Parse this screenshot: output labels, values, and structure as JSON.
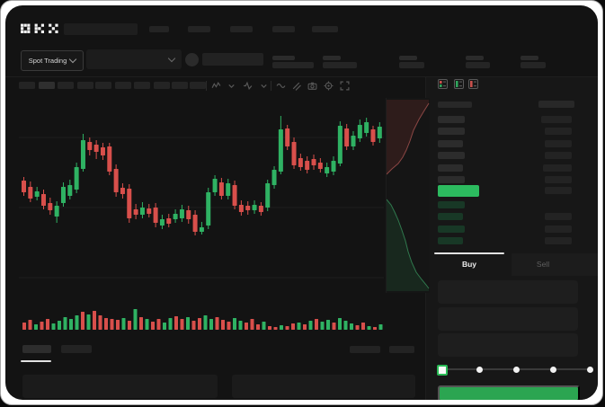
{
  "brand": "OKX",
  "market_bar": {
    "selector_label": "Spot Trading"
  },
  "colors": {
    "up": "#2fb263",
    "down": "#d84f4b",
    "accent_green": "#2cbb5f",
    "button_green": "#2ba551",
    "bid_row_green": "#183826",
    "depth_ask_fill": "rgba(200,70,66,0.14)",
    "depth_ask_line": "rgba(225,110,105,0.55)",
    "depth_bid_fill": "rgba(48,170,95,0.13)",
    "depth_bid_line": "rgba(70,195,120,0.55)"
  },
  "toolbar": {
    "timeframe_placeholder_count": 10,
    "active_timeframe_index": 1
  },
  "order_book": {
    "view_icons": [
      "orderbook-combined",
      "orderbook-buy",
      "orderbook-sell"
    ],
    "asks": [
      {
        "pw": 30,
        "aw": 34
      },
      {
        "pw": 30,
        "aw": 30
      },
      {
        "pw": 28,
        "aw": 30
      },
      {
        "pw": 30,
        "aw": 30
      },
      {
        "pw": 28,
        "aw": 32
      },
      {
        "pw": 30,
        "aw": 30
      }
    ],
    "last_price": {
      "side": "up",
      "aw": 30
    },
    "bids": [
      {
        "pw": 30,
        "aw": 0
      },
      {
        "pw": 28,
        "aw": 30
      },
      {
        "pw": 30,
        "aw": 30
      },
      {
        "pw": 28,
        "aw": 30
      }
    ]
  },
  "trade_panel": {
    "tabs": [
      {
        "label": "Buy",
        "active": true
      },
      {
        "label": "Sell",
        "active": false
      }
    ],
    "field_count": 3,
    "slider": {
      "stops": 5,
      "active_index": 0
    },
    "submit_label": ""
  },
  "chart_data": {
    "type": "candlestick+volume+depth",
    "title": "",
    "xlabel": "",
    "ylabel": "",
    "axis_labels_visible": false,
    "grid": true,
    "price_unit_note": "no axis labels visible; values estimated in relative units",
    "candles": [
      [
        140,
        144,
        123,
        127
      ],
      [
        133,
        139,
        116,
        120
      ],
      [
        122,
        133,
        118,
        128
      ],
      [
        125,
        130,
        108,
        112
      ],
      [
        115,
        121,
        102,
        107
      ],
      [
        100,
        117,
        93,
        112
      ],
      [
        115,
        138,
        111,
        133
      ],
      [
        123,
        141,
        119,
        135
      ],
      [
        130,
        160,
        126,
        155
      ],
      [
        153,
        192,
        150,
        185
      ],
      [
        183,
        188,
        168,
        174
      ],
      [
        180,
        185,
        164,
        172
      ],
      [
        177,
        182,
        163,
        168
      ],
      [
        178,
        182,
        146,
        150
      ],
      [
        153,
        158,
        122,
        127
      ],
      [
        132,
        137,
        120,
        125
      ],
      [
        131,
        136,
        93,
        98
      ],
      [
        108,
        114,
        97,
        102
      ],
      [
        102,
        116,
        98,
        110
      ],
      [
        109,
        114,
        99,
        103
      ],
      [
        110,
        115,
        88,
        93
      ],
      [
        90,
        102,
        86,
        97
      ],
      [
        98,
        103,
        88,
        92
      ],
      [
        97,
        108,
        93,
        103
      ],
      [
        98,
        113,
        94,
        108
      ],
      [
        107,
        112,
        92,
        97
      ],
      [
        102,
        107,
        79,
        83
      ],
      [
        83,
        94,
        80,
        88
      ],
      [
        90,
        132,
        86,
        127
      ],
      [
        127,
        146,
        123,
        142
      ],
      [
        138,
        143,
        119,
        123
      ],
      [
        123,
        142,
        119,
        137
      ],
      [
        135,
        140,
        108,
        112
      ],
      [
        113,
        118,
        101,
        105
      ],
      [
        112,
        117,
        102,
        107
      ],
      [
        107,
        118,
        103,
        113
      ],
      [
        112,
        116,
        101,
        105
      ],
      [
        110,
        141,
        106,
        137
      ],
      [
        135,
        156,
        131,
        152
      ],
      [
        150,
        212,
        147,
        197
      ],
      [
        198,
        202,
        174,
        178
      ],
      [
        183,
        188,
        153,
        157
      ],
      [
        165,
        170,
        151,
        155
      ],
      [
        162,
        167,
        148,
        152
      ],
      [
        164,
        169,
        152,
        157
      ],
      [
        160,
        165,
        149,
        153
      ],
      [
        148,
        160,
        144,
        155
      ],
      [
        150,
        167,
        146,
        162
      ],
      [
        159,
        206,
        156,
        201
      ],
      [
        198,
        203,
        174,
        178
      ],
      [
        178,
        195,
        174,
        190
      ],
      [
        187,
        208,
        183,
        202
      ],
      [
        193,
        210,
        189,
        205
      ],
      [
        197,
        201,
        179,
        183
      ],
      [
        187,
        205,
        182,
        200
      ]
    ],
    "volume": {
      "values": [
        8,
        11,
        6,
        9,
        12,
        7,
        10,
        14,
        12,
        16,
        20,
        17,
        21,
        16,
        13,
        12,
        11,
        13,
        10,
        23,
        14,
        12,
        9,
        12,
        8,
        13,
        15,
        12,
        14,
        10,
        13,
        16,
        12,
        14,
        11,
        9,
        13,
        10,
        8,
        12,
        6,
        9,
        4,
        3,
        5,
        4,
        7,
        8,
        6,
        10,
        12,
        9,
        11,
        8,
        13,
        10,
        7,
        5,
        8,
        4,
        3,
        6
      ],
      "colors": [
        "r",
        "r",
        "g",
        "r",
        "r",
        "g",
        "g",
        "g",
        "g",
        "g",
        "r",
        "g",
        "r",
        "r",
        "r",
        "r",
        "r",
        "g",
        "r",
        "g",
        "r",
        "g",
        "r",
        "r",
        "g",
        "g",
        "r",
        "r",
        "g",
        "r",
        "r",
        "g",
        "g",
        "r",
        "r",
        "r",
        "g",
        "g",
        "r",
        "r",
        "r",
        "g",
        "r",
        "r",
        "g",
        "r",
        "r",
        "g",
        "r",
        "g",
        "r",
        "g",
        "g",
        "r",
        "g",
        "g",
        "g",
        "r",
        "r",
        "g",
        "r",
        "g"
      ]
    },
    "depth": {
      "asks_curve": [
        [
          47,
          6
        ],
        [
          42,
          14
        ],
        [
          36,
          24
        ],
        [
          30,
          36
        ],
        [
          26,
          48
        ],
        [
          22,
          58
        ],
        [
          18,
          66
        ],
        [
          13,
          73
        ],
        [
          6,
          79
        ],
        [
          0,
          85
        ]
      ],
      "bids_curve": [
        [
          0,
          113
        ],
        [
          5,
          119
        ],
        [
          9,
          127
        ],
        [
          13,
          136
        ],
        [
          17,
          147
        ],
        [
          21,
          159
        ],
        [
          24,
          171
        ],
        [
          28,
          183
        ],
        [
          33,
          194
        ],
        [
          39,
          202
        ],
        [
          44,
          208
        ],
        [
          47,
          212
        ]
      ]
    }
  }
}
